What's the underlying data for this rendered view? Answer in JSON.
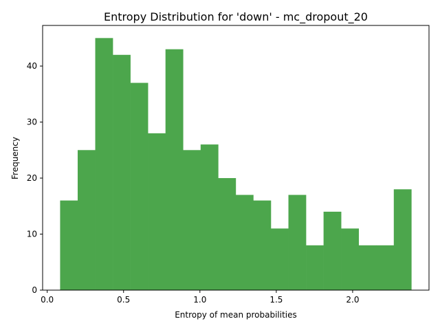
{
  "chart_data": {
    "type": "bar",
    "title": "Entropy Distribution for 'down' - mc_dropout_20",
    "xlabel": "Entropy of mean probabilities",
    "ylabel": "Frequency",
    "bar_color": "#4ca64c",
    "bin_edges": [
      0.0845,
      0.1995,
      0.3145,
      0.4295,
      0.5445,
      0.6595,
      0.7745,
      0.8895,
      1.0045,
      1.1195,
      1.2345,
      1.3495,
      1.4645,
      1.5795,
      1.6945,
      1.8095,
      1.9245,
      2.0395,
      2.1545,
      2.2695,
      2.3845
    ],
    "values": [
      16,
      25,
      45,
      42,
      37,
      28,
      43,
      25,
      26,
      20,
      17,
      16,
      11,
      17,
      8,
      14,
      11,
      8,
      8,
      18
    ],
    "xlim": [
      -0.03,
      2.5
    ],
    "ylim": [
      0,
      47.25
    ],
    "xticks": [
      0.0,
      0.5,
      1.0,
      1.5,
      2.0
    ],
    "xtick_labels": [
      "0.0",
      "0.5",
      "1.0",
      "1.5",
      "2.0"
    ],
    "yticks": [
      0,
      10,
      20,
      30,
      40
    ],
    "ytick_labels": [
      "0",
      "10",
      "20",
      "30",
      "40"
    ]
  }
}
